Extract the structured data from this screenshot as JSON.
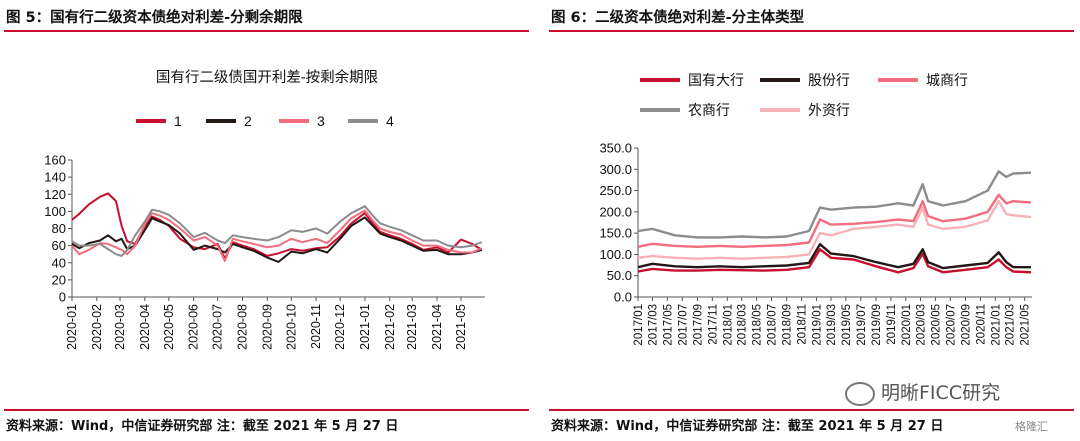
{
  "panel1": {
    "figure_title": "图 5：国有行二级资本债绝对利差-分剩余期限",
    "source": "资料来源：Wind，中信证券研究部  注：截至 2021 年 5 月 27 日"
  },
  "panel2": {
    "figure_title": "图 6：二级资本债绝对利差-分主体类型",
    "source": "资料来源：Wind，中信证券研究部  注：截至 2021 年 5 月 27 日"
  },
  "watermark": {
    "text": "明晰FICC研究",
    "small": "格隆汇"
  },
  "colors": {
    "red": "#c8102e",
    "black": "#231815",
    "pink": "#f26d7d",
    "gray": "#8c8c8c",
    "lightpink": "#f7b2b7"
  },
  "chart_data": [
    {
      "type": "line",
      "title": "国有行二级债国开利差-按剩余期限",
      "xlabel": "",
      "ylabel": "",
      "ylim": [
        0,
        160
      ],
      "yticks": [
        0,
        20,
        40,
        60,
        80,
        100,
        120,
        140,
        160
      ],
      "xlim": [
        "2020-01-01",
        "2021-05-31"
      ],
      "xticks": [
        "2020-01",
        "2020-02",
        "2020-03",
        "2020-04",
        "2020-05",
        "2020-06",
        "2020-07",
        "2020-08",
        "2020-09",
        "2020-10",
        "2020-11",
        "2020-12",
        "2021-01",
        "2021-02",
        "2021-03",
        "2021-04",
        "2021-05"
      ],
      "legend_position": "top",
      "grid": false,
      "series": [
        {
          "name": "1",
          "color": "#c8102e",
          "x": [
            "2020-01-01",
            "2020-01-10",
            "2020-01-22",
            "2020-02-05",
            "2020-02-15",
            "2020-02-25",
            "2020-03-03",
            "2020-03-10",
            "2020-03-20",
            "2020-04-01",
            "2020-04-10",
            "2020-04-20",
            "2020-05-01",
            "2020-05-15",
            "2020-06-01",
            "2020-06-15",
            "2020-07-01",
            "2020-07-10",
            "2020-07-20",
            "2020-08-01",
            "2020-08-15",
            "2020-09-01",
            "2020-09-15",
            "2020-10-01",
            "2020-10-15",
            "2020-11-01",
            "2020-11-15",
            "2020-12-01",
            "2020-12-15",
            "2021-01-01",
            "2021-01-10",
            "2021-01-20",
            "2021-02-01",
            "2021-02-15",
            "2021-03-01",
            "2021-03-15",
            "2021-04-01",
            "2021-04-15",
            "2021-05-01",
            "2021-05-15",
            "2021-05-27"
          ],
          "y": [
            90,
            97,
            108,
            117,
            121,
            112,
            83,
            65,
            62,
            83,
            94,
            90,
            83,
            68,
            58,
            56,
            62,
            45,
            64,
            60,
            56,
            48,
            51,
            56,
            54,
            57,
            58,
            71,
            86,
            98,
            87,
            76,
            72,
            68,
            62,
            55,
            58,
            52,
            67,
            62,
            55
          ]
        },
        {
          "name": "2",
          "color": "#231815",
          "x": [
            "2020-01-01",
            "2020-01-10",
            "2020-01-22",
            "2020-02-05",
            "2020-02-15",
            "2020-02-25",
            "2020-03-03",
            "2020-03-10",
            "2020-03-20",
            "2020-04-01",
            "2020-04-10",
            "2020-04-20",
            "2020-05-01",
            "2020-05-15",
            "2020-06-01",
            "2020-06-15",
            "2020-07-01",
            "2020-07-10",
            "2020-07-20",
            "2020-08-01",
            "2020-08-15",
            "2020-09-01",
            "2020-09-15",
            "2020-10-01",
            "2020-10-15",
            "2020-11-01",
            "2020-11-15",
            "2020-12-01",
            "2020-12-15",
            "2021-01-01",
            "2021-01-10",
            "2021-01-20",
            "2021-02-01",
            "2021-02-15",
            "2021-03-01",
            "2021-03-15",
            "2021-04-01",
            "2021-04-15",
            "2021-05-01",
            "2021-05-15",
            "2021-05-27"
          ],
          "y": [
            62,
            57,
            63,
            66,
            72,
            65,
            68,
            56,
            60,
            78,
            92,
            88,
            84,
            74,
            55,
            60,
            56,
            52,
            62,
            58,
            54,
            46,
            41,
            53,
            51,
            56,
            52,
            68,
            83,
            93,
            84,
            74,
            70,
            66,
            60,
            54,
            55,
            50,
            50,
            52,
            55
          ]
        },
        {
          "name": "3",
          "color": "#f26d7d",
          "x": [
            "2020-01-01",
            "2020-01-10",
            "2020-01-22",
            "2020-02-05",
            "2020-02-15",
            "2020-02-25",
            "2020-03-03",
            "2020-03-10",
            "2020-03-20",
            "2020-04-01",
            "2020-04-10",
            "2020-04-20",
            "2020-05-01",
            "2020-05-15",
            "2020-06-01",
            "2020-06-15",
            "2020-07-01",
            "2020-07-10",
            "2020-07-20",
            "2020-08-01",
            "2020-08-15",
            "2020-09-01",
            "2020-09-15",
            "2020-10-01",
            "2020-10-15",
            "2020-11-01",
            "2020-11-15",
            "2020-12-01",
            "2020-12-15",
            "2021-01-01",
            "2021-01-10",
            "2021-01-20",
            "2021-02-01",
            "2021-02-15",
            "2021-03-01",
            "2021-03-15",
            "2021-04-01",
            "2021-04-15",
            "2021-05-01",
            "2021-05-15",
            "2021-05-27"
          ],
          "y": [
            60,
            50,
            55,
            63,
            62,
            58,
            55,
            50,
            60,
            85,
            98,
            95,
            90,
            80,
            66,
            70,
            60,
            42,
            68,
            65,
            62,
            58,
            60,
            68,
            64,
            68,
            63,
            78,
            92,
            101,
            90,
            80,
            76,
            73,
            66,
            60,
            60,
            55,
            52,
            52,
            57
          ]
        },
        {
          "name": "4",
          "color": "#8c8c8c",
          "x": [
            "2020-01-01",
            "2020-01-10",
            "2020-01-22",
            "2020-02-05",
            "2020-02-15",
            "2020-02-25",
            "2020-03-03",
            "2020-03-10",
            "2020-03-20",
            "2020-04-01",
            "2020-04-10",
            "2020-04-20",
            "2020-05-01",
            "2020-05-15",
            "2020-06-01",
            "2020-06-15",
            "2020-07-01",
            "2020-07-10",
            "2020-07-20",
            "2020-08-01",
            "2020-08-15",
            "2020-09-01",
            "2020-09-15",
            "2020-10-01",
            "2020-10-15",
            "2020-11-01",
            "2020-11-15",
            "2020-12-01",
            "2020-12-15",
            "2021-01-01",
            "2021-01-10",
            "2021-01-20",
            "2021-02-01",
            "2021-02-15",
            "2021-03-01",
            "2021-03-15",
            "2021-04-01",
            "2021-04-15",
            "2021-05-01",
            "2021-05-15",
            "2021-05-27"
          ],
          "y": [
            65,
            60,
            60,
            62,
            56,
            50,
            48,
            55,
            72,
            88,
            102,
            100,
            96,
            86,
            70,
            75,
            66,
            63,
            72,
            70,
            68,
            66,
            70,
            78,
            76,
            80,
            74,
            88,
            98,
            106,
            96,
            86,
            82,
            78,
            72,
            66,
            66,
            60,
            58,
            60,
            64
          ]
        }
      ]
    },
    {
      "type": "line",
      "title": "",
      "xlabel": "",
      "ylabel": "",
      "ylim": [
        0,
        350
      ],
      "yticks": [
        "0.0",
        "50.0",
        "100.0",
        "150.0",
        "200.0",
        "250.0",
        "300.0",
        "350.0"
      ],
      "xlim": [
        "2017-01-01",
        "2021-05-31"
      ],
      "xticks": [
        "2017/01",
        "2017/03",
        "2017/05",
        "2017/07",
        "2017/09",
        "2017/11",
        "2018/01",
        "2018/03",
        "2018/05",
        "2018/07",
        "2018/09",
        "2018/11",
        "2019/01",
        "2019/03",
        "2019/05",
        "2019/07",
        "2019/09",
        "2019/11",
        "2020/01",
        "2020/03",
        "2020/05",
        "2020/07",
        "2020/09",
        "2020/11",
        "2021/01",
        "2021/03",
        "2021/05"
      ],
      "legend_position": "top",
      "grid": false,
      "series": [
        {
          "name": "国有大行",
          "color": "#c8102e",
          "x": [
            "2017-01-01",
            "2017-03-01",
            "2017-06-01",
            "2017-09-01",
            "2017-12-01",
            "2018-03-01",
            "2018-06-01",
            "2018-09-01",
            "2018-12-01",
            "2019-01-15",
            "2019-03-01",
            "2019-06-01",
            "2019-09-01",
            "2019-12-01",
            "2020-02-01",
            "2020-03-10",
            "2020-04-01",
            "2020-06-01",
            "2020-09-01",
            "2020-12-01",
            "2021-01-15",
            "2021-02-15",
            "2021-03-15",
            "2021-05-27"
          ],
          "y": [
            60,
            66,
            62,
            62,
            64,
            63,
            62,
            64,
            70,
            112,
            92,
            88,
            72,
            58,
            68,
            102,
            72,
            58,
            64,
            70,
            88,
            70,
            60,
            58
          ]
        },
        {
          "name": "股份行",
          "color": "#231815",
          "x": [
            "2017-01-01",
            "2017-03-01",
            "2017-06-01",
            "2017-09-01",
            "2017-12-01",
            "2018-03-01",
            "2018-06-01",
            "2018-09-01",
            "2018-12-01",
            "2019-01-15",
            "2019-03-01",
            "2019-06-01",
            "2019-09-01",
            "2019-12-01",
            "2020-02-01",
            "2020-03-10",
            "2020-04-01",
            "2020-06-01",
            "2020-09-01",
            "2020-12-01",
            "2021-01-15",
            "2021-02-15",
            "2021-03-15",
            "2021-05-27"
          ],
          "y": [
            70,
            78,
            72,
            70,
            72,
            70,
            72,
            74,
            80,
            124,
            102,
            96,
            82,
            70,
            78,
            112,
            82,
            68,
            74,
            80,
            105,
            82,
            70,
            70
          ]
        },
        {
          "name": "城商行",
          "color": "#f26d7d",
          "x": [
            "2017-01-01",
            "2017-03-01",
            "2017-06-01",
            "2017-09-01",
            "2017-12-01",
            "2018-03-01",
            "2018-06-01",
            "2018-09-01",
            "2018-12-01",
            "2019-01-15",
            "2019-03-01",
            "2019-06-01",
            "2019-09-01",
            "2019-12-01",
            "2020-02-01",
            "2020-03-10",
            "2020-04-01",
            "2020-06-01",
            "2020-09-01",
            "2020-12-01",
            "2021-01-15",
            "2021-02-15",
            "2021-03-15",
            "2021-05-27"
          ],
          "y": [
            118,
            125,
            120,
            118,
            120,
            118,
            120,
            122,
            128,
            182,
            170,
            172,
            176,
            182,
            178,
            225,
            190,
            178,
            184,
            200,
            240,
            220,
            225,
            222
          ]
        },
        {
          "name": "农商行",
          "color": "#8c8c8c",
          "x": [
            "2017-01-01",
            "2017-03-01",
            "2017-06-01",
            "2017-09-01",
            "2017-12-01",
            "2018-03-01",
            "2018-06-01",
            "2018-09-01",
            "2018-12-01",
            "2019-01-15",
            "2019-03-01",
            "2019-06-01",
            "2019-09-01",
            "2019-12-01",
            "2020-02-01",
            "2020-03-10",
            "2020-04-01",
            "2020-06-01",
            "2020-09-01",
            "2020-12-01",
            "2021-01-15",
            "2021-02-15",
            "2021-03-15",
            "2021-05-27"
          ],
          "y": [
            155,
            160,
            145,
            140,
            140,
            142,
            140,
            142,
            155,
            210,
            205,
            210,
            212,
            220,
            215,
            265,
            225,
            215,
            225,
            250,
            295,
            282,
            290,
            292
          ]
        },
        {
          "name": "外资行",
          "color": "#f7b2b7",
          "x": [
            "2017-01-01",
            "2017-03-01",
            "2017-06-01",
            "2017-09-01",
            "2017-12-01",
            "2018-03-01",
            "2018-06-01",
            "2018-09-01",
            "2018-12-01",
            "2019-01-15",
            "2019-03-01",
            "2019-06-01",
            "2019-09-01",
            "2019-12-01",
            "2020-02-01",
            "2020-03-10",
            "2020-04-01",
            "2020-06-01",
            "2020-09-01",
            "2020-12-01",
            "2021-01-15",
            "2021-02-15",
            "2021-03-15",
            "2021-05-27"
          ],
          "y": [
            92,
            96,
            92,
            90,
            92,
            90,
            92,
            94,
            100,
            150,
            145,
            160,
            165,
            170,
            165,
            210,
            170,
            160,
            165,
            180,
            225,
            195,
            192,
            188
          ]
        }
      ]
    }
  ]
}
